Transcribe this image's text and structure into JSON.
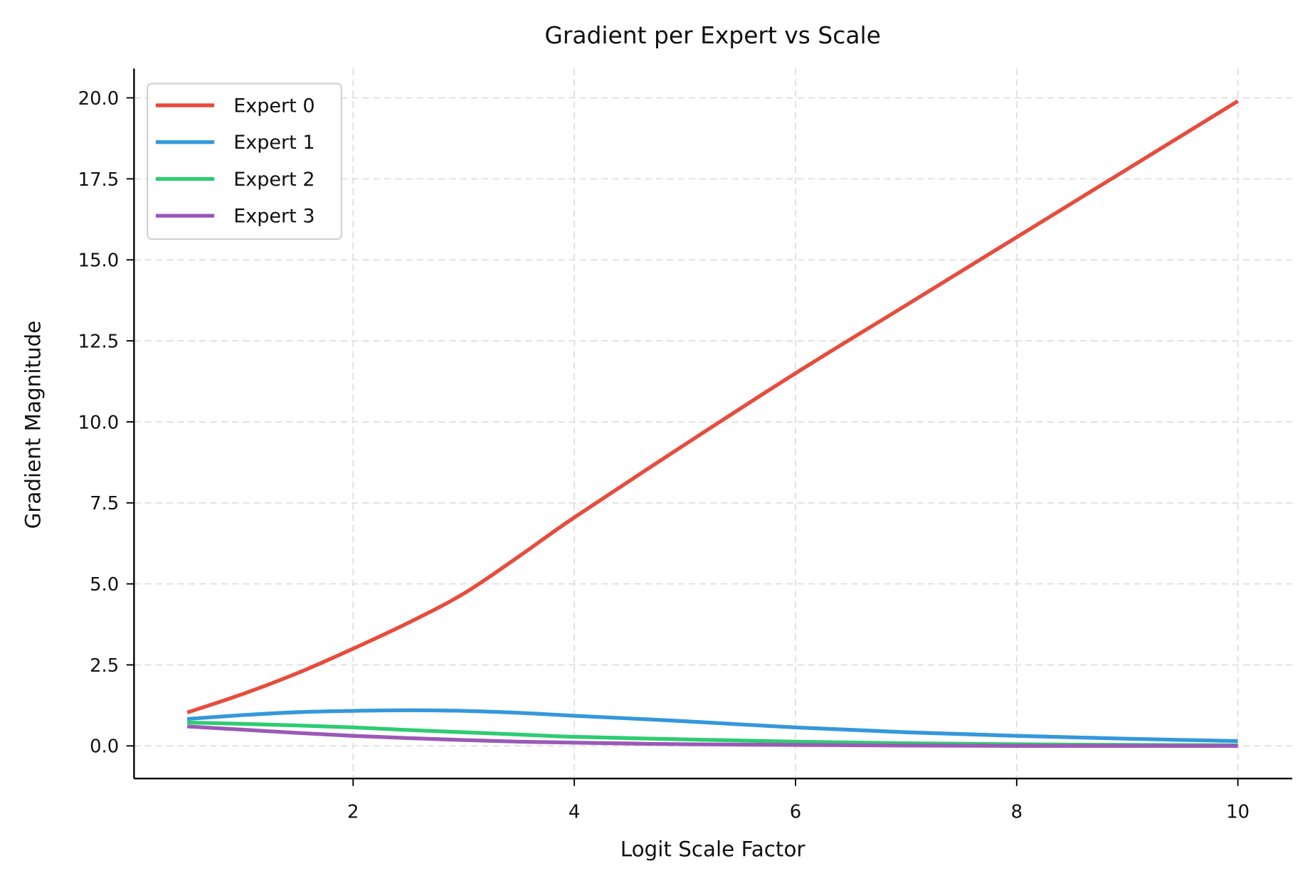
{
  "chart_data": {
    "type": "line",
    "title": "Gradient per Expert vs Scale",
    "xlabel": "Logit Scale Factor",
    "ylabel": "Gradient Magnitude",
    "xlim": [
      0.05,
      10.5
    ],
    "ylim": [
      -1.0,
      20.9
    ],
    "xticks": [
      2,
      4,
      6,
      8,
      10
    ],
    "xtick_labels": [
      "2",
      "4",
      "6",
      "8",
      "10"
    ],
    "yticks": [
      0.0,
      2.5,
      5.0,
      7.5,
      10.0,
      12.5,
      15.0,
      17.5,
      20.0
    ],
    "ytick_labels": [
      "0.0",
      "2.5",
      "5.0",
      "7.5",
      "10.0",
      "12.5",
      "15.0",
      "17.5",
      "20.0"
    ],
    "grid": true,
    "legend_position": "upper left",
    "x": [
      0.5,
      1.0,
      1.5,
      2.0,
      2.5,
      3.0,
      3.5,
      4.0,
      5.0,
      6.0,
      7.0,
      8.0,
      9.0,
      10.0
    ],
    "series": [
      {
        "name": "Expert 0",
        "color": "#e74c3c",
        "values": [
          1.03,
          1.6,
          2.25,
          3.0,
          3.8,
          4.7,
          5.85,
          7.05,
          9.3,
          11.5,
          13.6,
          15.7,
          17.8,
          19.9
        ]
      },
      {
        "name": "Expert 1",
        "color": "#3498db",
        "values": [
          0.83,
          0.95,
          1.04,
          1.08,
          1.1,
          1.08,
          1.02,
          0.93,
          0.76,
          0.57,
          0.42,
          0.31,
          0.22,
          0.15
        ]
      },
      {
        "name": "Expert 2",
        "color": "#2ecc71",
        "values": [
          0.72,
          0.68,
          0.63,
          0.57,
          0.49,
          0.42,
          0.35,
          0.28,
          0.2,
          0.13,
          0.08,
          0.05,
          0.03,
          0.02
        ]
      },
      {
        "name": "Expert 3",
        "color": "#9b59b6",
        "values": [
          0.6,
          0.5,
          0.4,
          0.31,
          0.24,
          0.18,
          0.13,
          0.1,
          0.05,
          0.03,
          0.01,
          0.0,
          0.0,
          0.0
        ]
      }
    ]
  }
}
